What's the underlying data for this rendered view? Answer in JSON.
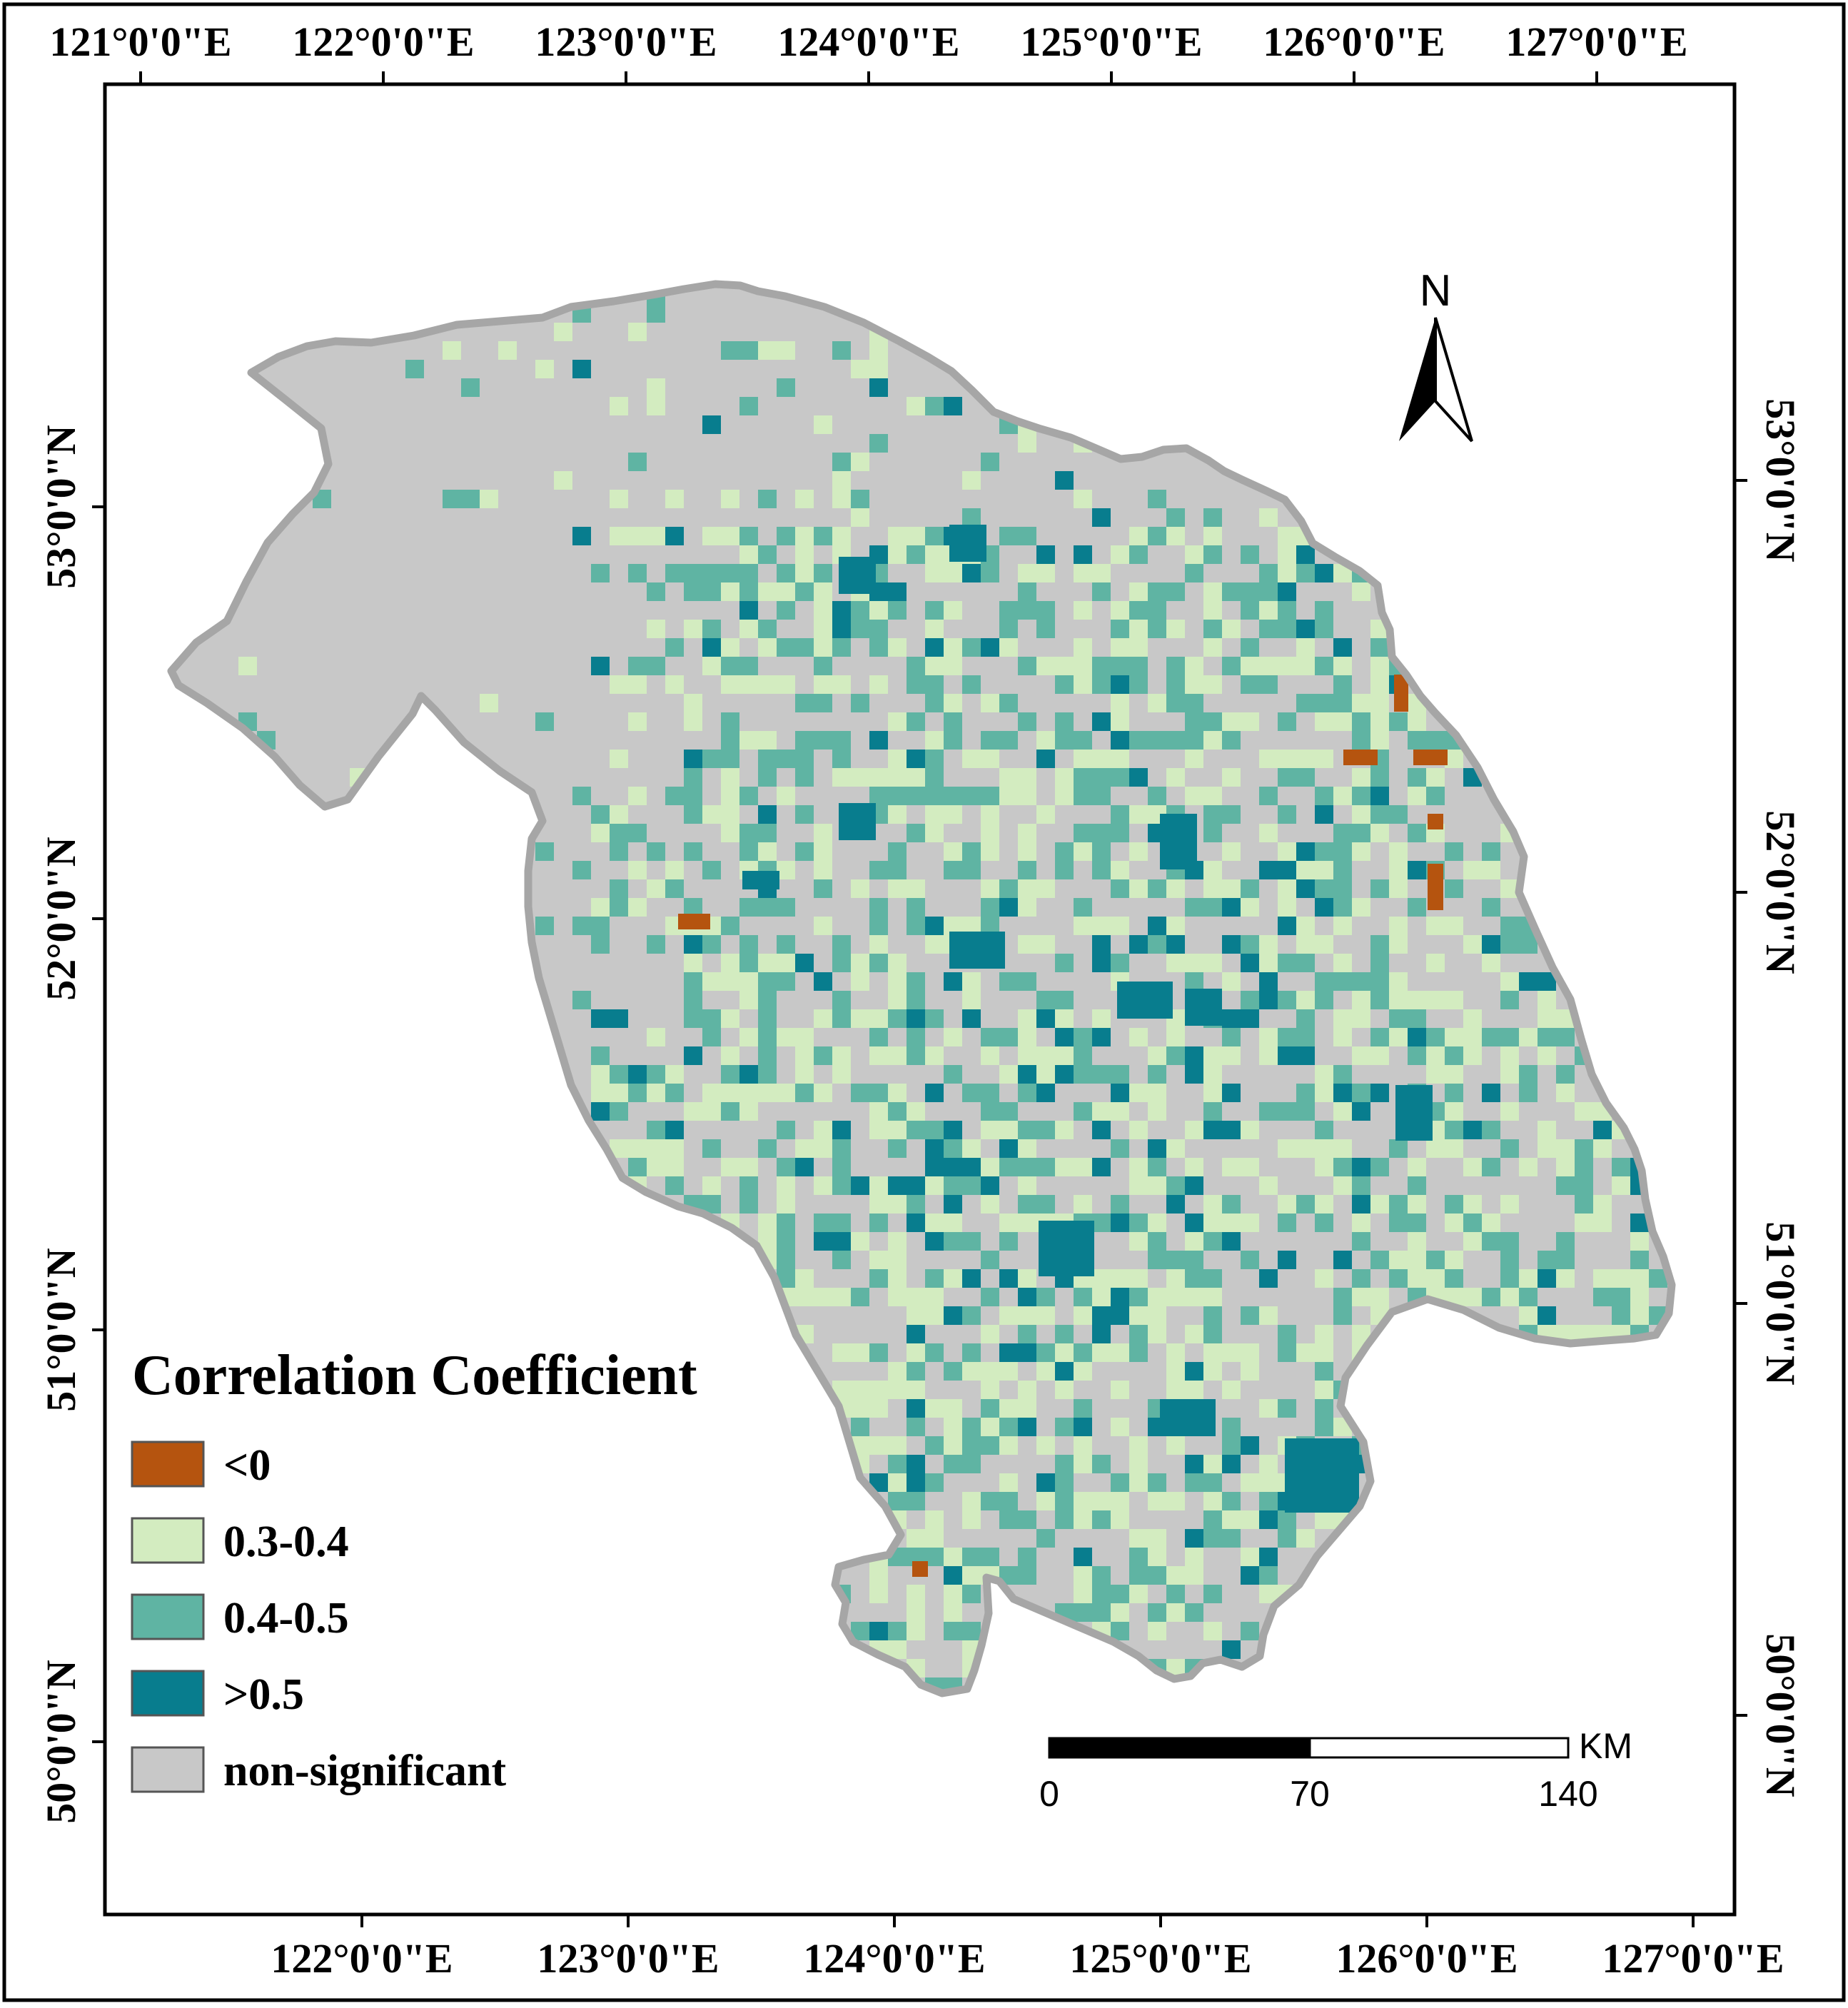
{
  "colors": {
    "negative": "#b5540f",
    "low": "#d3ecc0",
    "mid": "#5fb4a3",
    "high": "#087d8e",
    "nonsig": "#c8c8c8",
    "outline": "#a6a6a6"
  },
  "axes": {
    "top_lon_labels": [
      "121°0'0\"E",
      "122°0'0\"E",
      "123°0'0\"E",
      "124°0'0\"E",
      "125°0'0\"E",
      "126°0'0\"E",
      "127°0'0\"E"
    ],
    "bottom_lon_labels": [
      "122°0'0\"E",
      "123°0'0\"E",
      "124°0'0\"E",
      "125°0'0\"E",
      "126°0'0\"E",
      "127°0'0\"E"
    ],
    "left_lat_labels": [
      "53°0'0\"N",
      "52°0'0\"N",
      "51°0'0\"N",
      "50°0'0\"N"
    ],
    "right_lat_labels": [
      "53°0'0\"N",
      "52°0'0\"N",
      "51°0'0\"N",
      "50°0'0\"N"
    ]
  },
  "legend": {
    "title": "Correlation Coefficient",
    "items": [
      {
        "label": "<0",
        "color": "#b5540f"
      },
      {
        "label": "0.3-0.4",
        "color": "#d3ecc0"
      },
      {
        "label": "0.4-0.5",
        "color": "#5fb4a3"
      },
      {
        "label": ">0.5",
        "color": "#087d8e"
      },
      {
        "label": "non-significant",
        "color": "#c8c8c8"
      }
    ]
  },
  "north_arrow": {
    "label": "N"
  },
  "scale_bar": {
    "unit": "KM",
    "ticks": [
      "0",
      "70",
      "140"
    ]
  }
}
